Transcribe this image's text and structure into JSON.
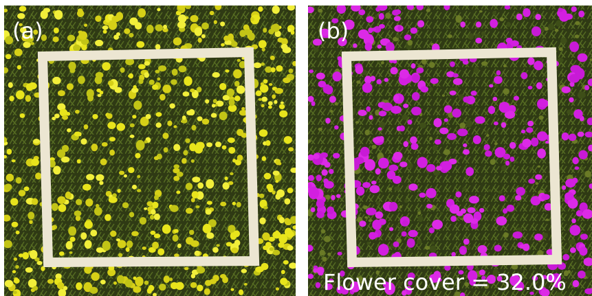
{
  "panels": [
    {
      "label": "(a)"
    },
    {
      "label": "(b)",
      "annotation": "Flower cover = 32.0%"
    }
  ]
}
